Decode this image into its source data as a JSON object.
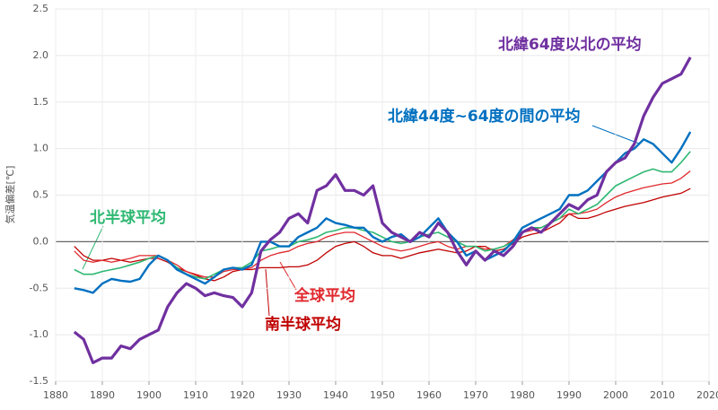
{
  "chart_data": {
    "type": "line",
    "ylabel": "気温偏差[℃]",
    "x": [
      1884,
      1886,
      1888,
      1890,
      1892,
      1894,
      1896,
      1898,
      1900,
      1902,
      1904,
      1906,
      1908,
      1910,
      1912,
      1914,
      1916,
      1918,
      1920,
      1922,
      1924,
      1926,
      1928,
      1930,
      1932,
      1934,
      1936,
      1938,
      1940,
      1942,
      1944,
      1946,
      1948,
      1950,
      1952,
      1954,
      1956,
      1958,
      1960,
      1962,
      1964,
      1966,
      1968,
      1970,
      1972,
      1974,
      1976,
      1978,
      1980,
      1982,
      1984,
      1986,
      1988,
      1990,
      1992,
      1994,
      1996,
      1998,
      2000,
      2002,
      2004,
      2006,
      2008,
      2010,
      2012,
      2014,
      2016
    ],
    "series": [
      {
        "name": "北緯64度以北の平均",
        "color": "#7030a0",
        "values": [
          -0.97,
          -1.05,
          -1.3,
          -1.25,
          -1.25,
          -1.12,
          -1.15,
          -1.05,
          -1.0,
          -0.95,
          -0.7,
          -0.55,
          -0.45,
          -0.5,
          -0.58,
          -0.55,
          -0.58,
          -0.6,
          -0.7,
          -0.55,
          -0.1,
          0.02,
          0.1,
          0.25,
          0.3,
          0.2,
          0.55,
          0.6,
          0.72,
          0.55,
          0.55,
          0.5,
          0.6,
          0.2,
          0.1,
          0.05,
          0.0,
          0.1,
          0.05,
          0.2,
          0.1,
          -0.1,
          -0.25,
          -0.1,
          -0.2,
          -0.1,
          -0.15,
          -0.05,
          0.1,
          0.15,
          0.1,
          0.2,
          0.3,
          0.4,
          0.35,
          0.45,
          0.5,
          0.75,
          0.85,
          0.9,
          1.05,
          1.35,
          1.55,
          1.7,
          1.75,
          1.8,
          1.98
        ]
      },
      {
        "name": "北緯44度~64度の間の平均",
        "color": "#0070c0",
        "values": [
          -0.5,
          -0.52,
          -0.55,
          -0.45,
          -0.4,
          -0.42,
          -0.43,
          -0.4,
          -0.25,
          -0.15,
          -0.2,
          -0.3,
          -0.35,
          -0.4,
          -0.45,
          -0.38,
          -0.3,
          -0.28,
          -0.3,
          -0.25,
          0.0,
          0.0,
          -0.05,
          -0.05,
          0.05,
          0.1,
          0.15,
          0.25,
          0.2,
          0.18,
          0.15,
          0.15,
          0.05,
          0.0,
          0.05,
          0.08,
          0.0,
          0.05,
          0.15,
          0.25,
          0.1,
          0.0,
          -0.15,
          -0.1,
          -0.2,
          -0.15,
          -0.1,
          0.0,
          0.15,
          0.2,
          0.25,
          0.3,
          0.35,
          0.5,
          0.5,
          0.55,
          0.65,
          0.75,
          0.85,
          0.95,
          1.0,
          1.1,
          1.05,
          0.95,
          0.85,
          1.0,
          1.18
        ]
      },
      {
        "name": "北半球平均",
        "color": "#2eb872",
        "values": [
          -0.3,
          -0.35,
          -0.35,
          -0.32,
          -0.3,
          -0.28,
          -0.25,
          -0.22,
          -0.18,
          -0.15,
          -0.2,
          -0.28,
          -0.35,
          -0.38,
          -0.4,
          -0.35,
          -0.3,
          -0.28,
          -0.28,
          -0.22,
          -0.1,
          -0.08,
          -0.05,
          -0.05,
          0.0,
          0.02,
          0.05,
          0.1,
          0.12,
          0.15,
          0.15,
          0.12,
          0.1,
          0.05,
          0.0,
          -0.02,
          0.0,
          0.05,
          0.08,
          0.1,
          0.05,
          0.0,
          -0.05,
          -0.05,
          -0.1,
          -0.08,
          -0.05,
          0.0,
          0.1,
          0.15,
          0.15,
          0.2,
          0.25,
          0.35,
          0.3,
          0.35,
          0.4,
          0.5,
          0.6,
          0.65,
          0.7,
          0.75,
          0.78,
          0.75,
          0.75,
          0.85,
          0.97
        ]
      },
      {
        "name": "全球平均",
        "color": "#e0282d",
        "values": [
          -0.1,
          -0.2,
          -0.22,
          -0.2,
          -0.22,
          -0.2,
          -0.18,
          -0.15,
          -0.15,
          -0.15,
          -0.2,
          -0.25,
          -0.32,
          -0.35,
          -0.38,
          -0.38,
          -0.32,
          -0.3,
          -0.3,
          -0.28,
          -0.2,
          -0.15,
          -0.12,
          -0.1,
          -0.05,
          -0.02,
          0.0,
          0.05,
          0.08,
          0.1,
          0.1,
          0.05,
          0.0,
          -0.05,
          -0.08,
          -0.1,
          -0.08,
          -0.05,
          -0.02,
          0.0,
          -0.05,
          -0.08,
          -0.05,
          -0.05,
          -0.08,
          -0.08,
          -0.05,
          0.02,
          0.1,
          0.12,
          0.15,
          0.2,
          0.25,
          0.3,
          0.3,
          0.32,
          0.35,
          0.42,
          0.48,
          0.52,
          0.55,
          0.58,
          0.6,
          0.62,
          0.63,
          0.68,
          0.76
        ]
      },
      {
        "name": "南半球平均",
        "color": "#c00000",
        "values": [
          -0.05,
          -0.15,
          -0.2,
          -0.2,
          -0.18,
          -0.2,
          -0.22,
          -0.2,
          -0.18,
          -0.18,
          -0.22,
          -0.28,
          -0.32,
          -0.36,
          -0.4,
          -0.42,
          -0.38,
          -0.32,
          -0.3,
          -0.3,
          -0.28,
          -0.28,
          -0.28,
          -0.27,
          -0.27,
          -0.25,
          -0.2,
          -0.12,
          -0.05,
          -0.02,
          0.0,
          -0.05,
          -0.12,
          -0.15,
          -0.15,
          -0.18,
          -0.15,
          -0.12,
          -0.1,
          -0.08,
          -0.1,
          -0.12,
          -0.1,
          -0.05,
          -0.05,
          -0.1,
          -0.08,
          -0.02,
          0.05,
          0.08,
          0.1,
          0.15,
          0.2,
          0.3,
          0.25,
          0.25,
          0.28,
          0.32,
          0.35,
          0.38,
          0.4,
          0.42,
          0.45,
          0.48,
          0.5,
          0.52,
          0.57
        ]
      }
    ],
    "xlim": [
      1880,
      2020
    ],
    "xticks": [
      1880,
      1890,
      1900,
      1910,
      1920,
      1930,
      1940,
      1950,
      1960,
      1970,
      1980,
      1990,
      2000,
      2010,
      2020
    ],
    "ylim": [
      -1.5,
      2.5
    ],
    "yticks": [
      2.5,
      {
        "value": 2.0,
        "label": "2.0"
      },
      1.5,
      {
        "value": 1.0,
        "label": "1.0"
      },
      0.5,
      {
        "value": 0.0,
        "label": "0.0"
      },
      -0.5,
      {
        "value": -1.0,
        "label": "-1.0"
      },
      -1.5
    ],
    "grid": true
  }
}
